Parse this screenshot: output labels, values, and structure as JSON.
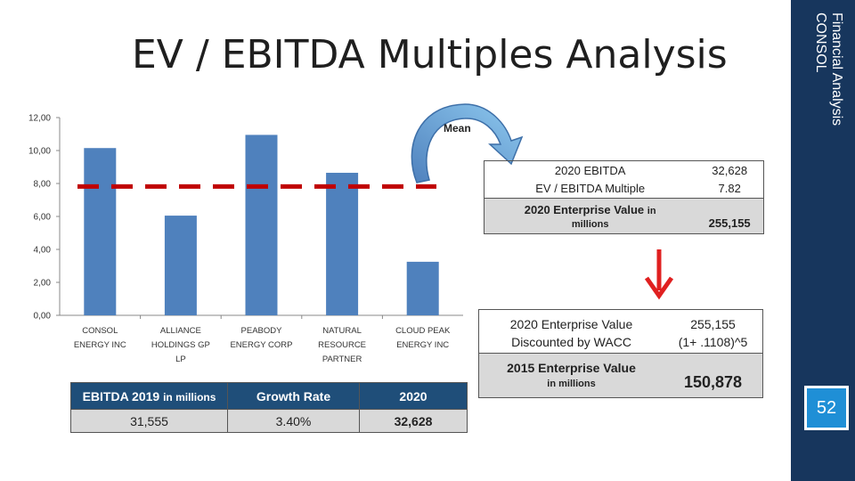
{
  "slide": {
    "title": "EV / EBITDA Multiples Analysis",
    "sidebar_line1": "Financial Analysis",
    "sidebar_line2": "CONSOL",
    "page_number": "52",
    "sidebar_color": "#17365d",
    "badge_color": "#1f8fd6"
  },
  "chart_data": {
    "type": "bar",
    "categories": [
      [
        "CONSOL",
        "ENERGY INC"
      ],
      [
        "ALLIANCE",
        "HOLDINGS GP",
        "LP"
      ],
      [
        "PEABODY",
        "ENERGY CORP"
      ],
      [
        "NATURAL",
        "RESOURCE",
        "PARTNER"
      ],
      [
        "CLOUD PEAK",
        "ENERGY INC"
      ]
    ],
    "values": [
      10.15,
      6.05,
      10.95,
      8.65,
      3.25
    ],
    "ylim": [
      0,
      12
    ],
    "yticks": [
      "0,00",
      "2,00",
      "4,00",
      "6,00",
      "8,00",
      "10,00",
      "12,00"
    ],
    "mean_line": 7.82,
    "bar_color": "#4f81bd",
    "mean_color": "#c00000",
    "grid": false,
    "legend": "none",
    "annotation": "Mean"
  },
  "growth_table": {
    "headers": [
      "EBITDA 2019",
      "in millions",
      "Growth Rate",
      "2020"
    ],
    "row": [
      "31,555",
      "3.40%",
      "32,628"
    ],
    "header_color": "#1f4e79"
  },
  "ev_table": {
    "row1": [
      "2020 EBITDA",
      "32,628"
    ],
    "row2": [
      "EV / EBITDA Multiple",
      "7.82"
    ],
    "total_label": "2020 Enterprise Value",
    "total_label_small": "in",
    "total_label_line2": "millions",
    "total_value": "255,155"
  },
  "discount_table": {
    "row1": [
      "2020 Enterprise Value",
      "255,155"
    ],
    "row2": [
      "Discounted by WACC",
      "(1+ .1108)^5"
    ],
    "total_label": "2015 Enterprise Value",
    "total_label_line2": "in millions",
    "total_value": "150,878"
  },
  "arrows": {
    "curved_color": "#1f8fd6",
    "down_color": "#e02020"
  }
}
